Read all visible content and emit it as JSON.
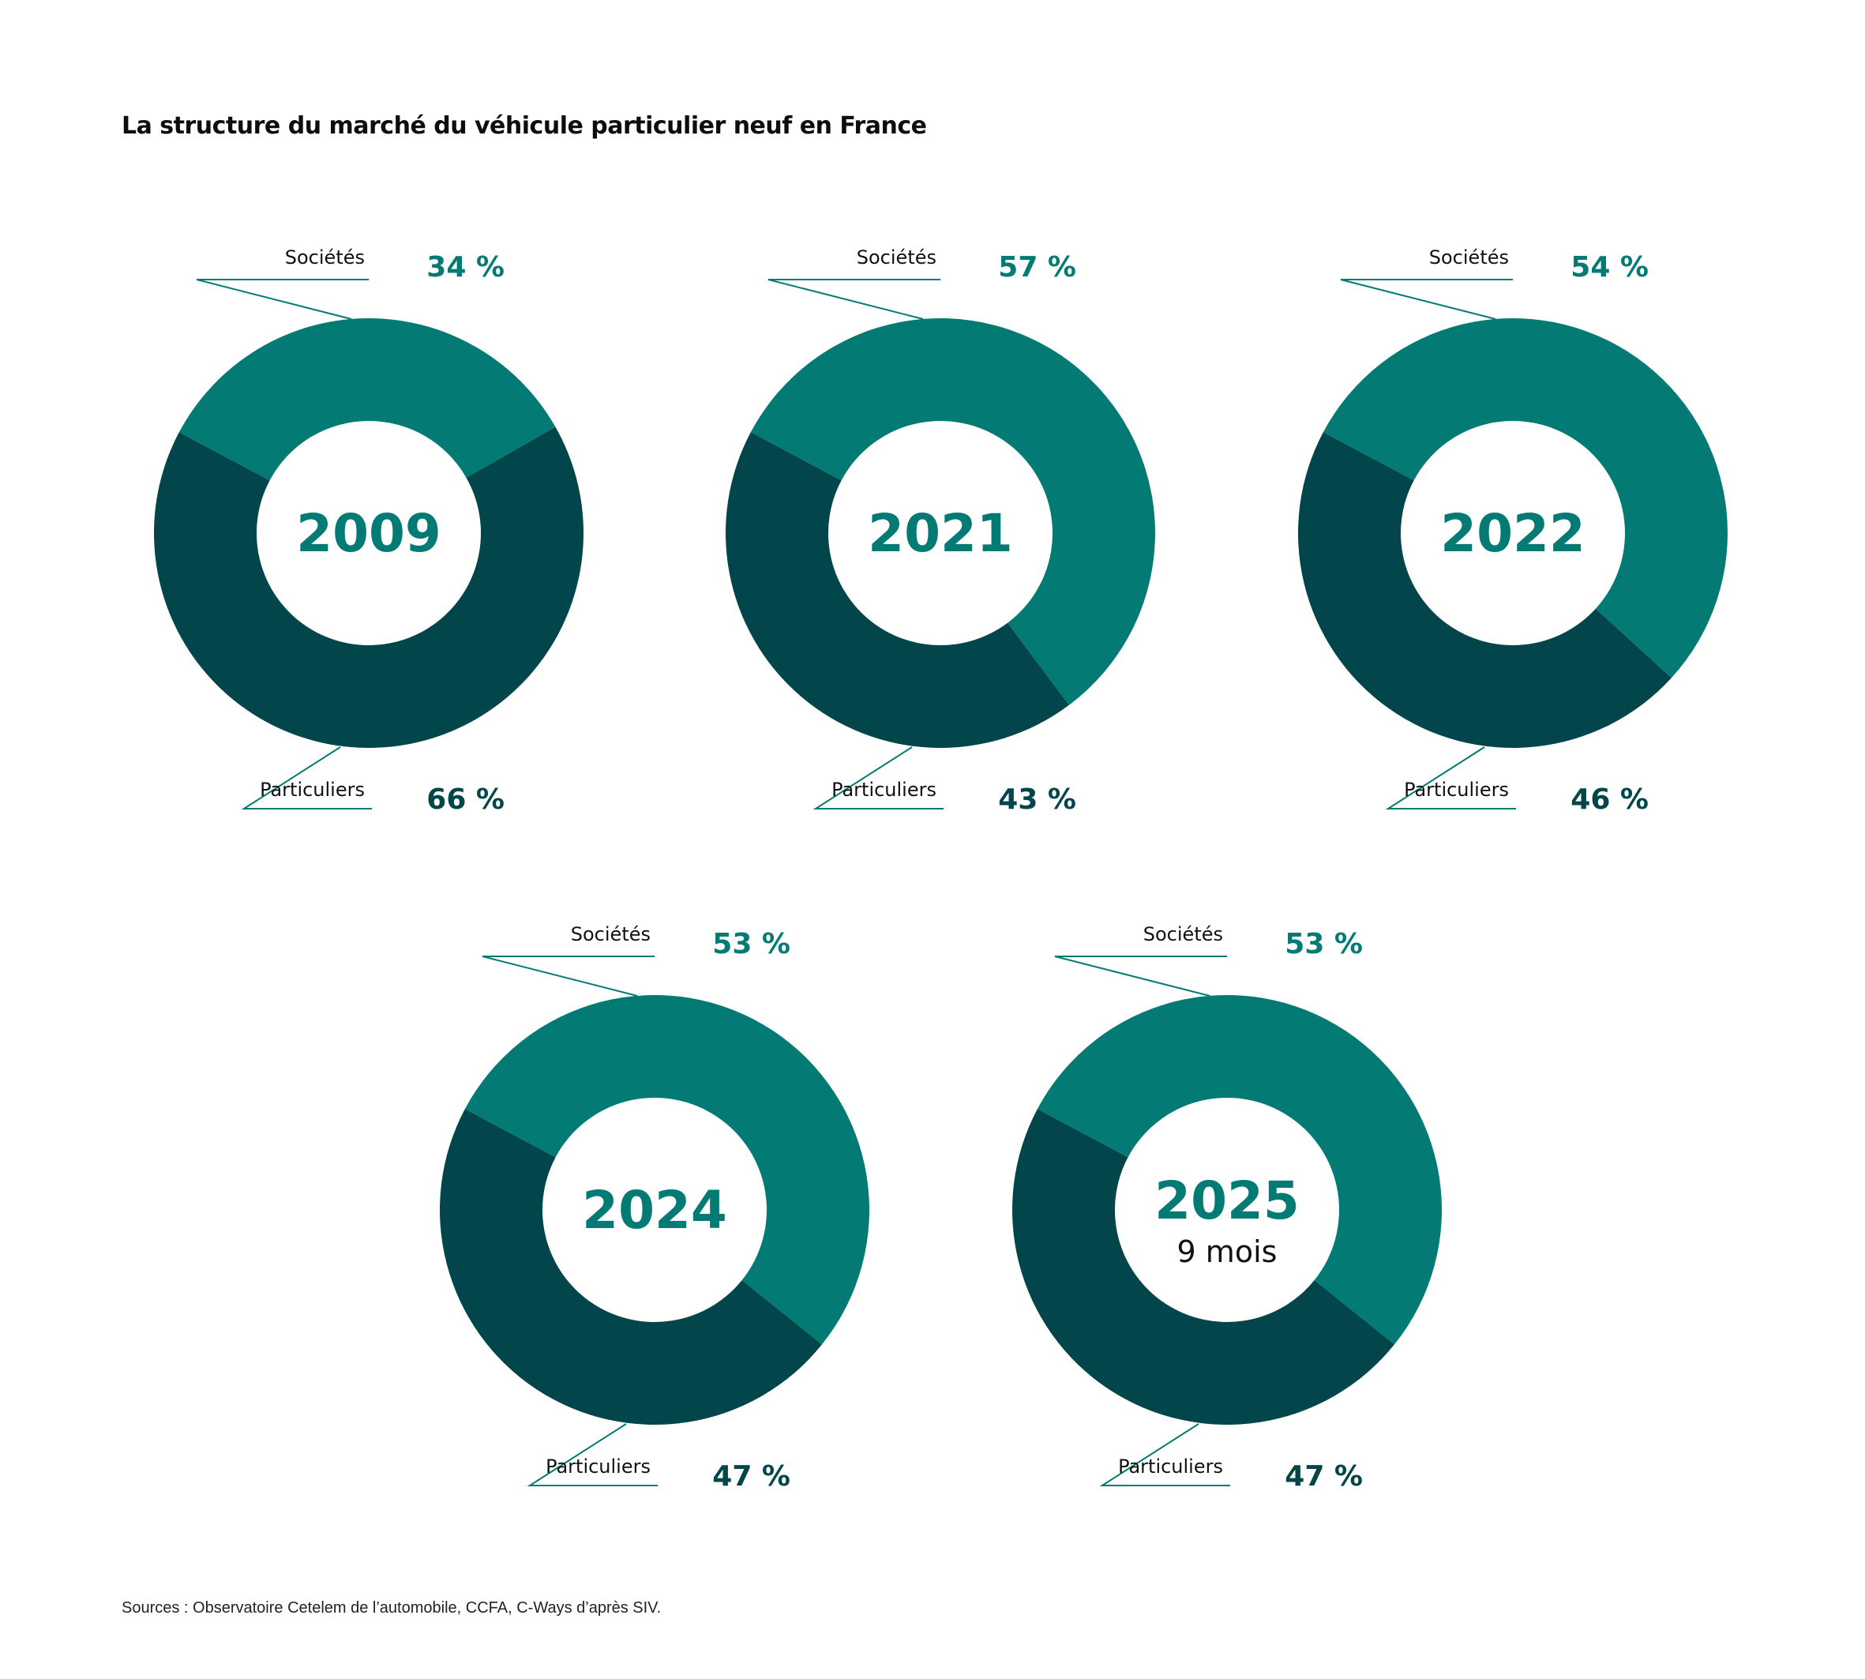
{
  "title": "La structure du marché du véhicule particulier neuf en France",
  "source": "Sources : Observatoire Cetelem de l’automobile, CCFA, C-Ways d’après SIV.",
  "colors": {
    "societes": "#037a74",
    "particuliers": "#02454a"
  },
  "chart_data": [
    {
      "type": "pie",
      "year": "2009",
      "subtitle": "",
      "categories": [
        "Sociétés",
        "Particuliers"
      ],
      "values": [
        34,
        66
      ],
      "labels": [
        "34 %",
        "66 %"
      ]
    },
    {
      "type": "pie",
      "year": "2021",
      "subtitle": "",
      "categories": [
        "Sociétés",
        "Particuliers"
      ],
      "values": [
        57,
        43
      ],
      "labels": [
        "57 %",
        "43 %"
      ]
    },
    {
      "type": "pie",
      "year": "2022",
      "subtitle": "",
      "categories": [
        "Sociétés",
        "Particuliers"
      ],
      "values": [
        54,
        46
      ],
      "labels": [
        "54 %",
        "46 %"
      ]
    },
    {
      "type": "pie",
      "year": "2024",
      "subtitle": "",
      "categories": [
        "Sociétés",
        "Particuliers"
      ],
      "values": [
        53,
        47
      ],
      "labels": [
        "53 %",
        "47 %"
      ]
    },
    {
      "type": "pie",
      "year": "2025",
      "subtitle": "9 mois",
      "categories": [
        "Sociétés",
        "Particuliers"
      ],
      "values": [
        53,
        47
      ],
      "labels": [
        "53 %",
        "47 %"
      ]
    }
  ]
}
